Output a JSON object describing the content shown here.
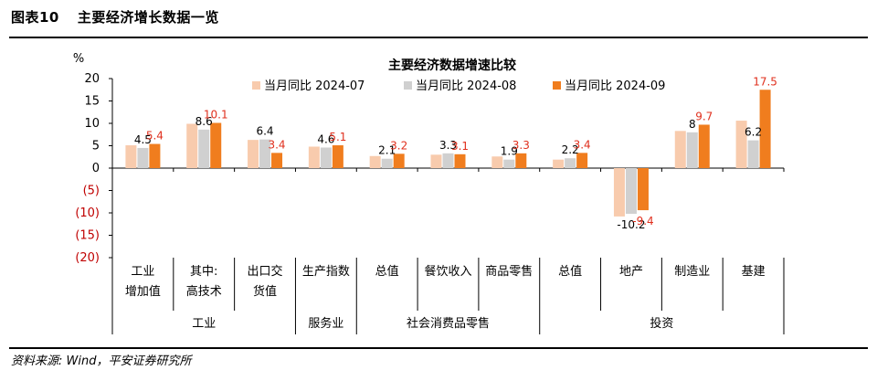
{
  "figure_label": "图表10",
  "figure_title": "主要经济增长数据一览",
  "source_note": "资料来源: Wind，平安证券研究所",
  "chart_data": {
    "type": "bar",
    "title": "主要经济数据增速比较",
    "ylabel": "%",
    "ylim": [
      -20,
      20
    ],
    "yticks": [
      "20",
      "15",
      "10",
      "5",
      "0",
      "(5)",
      "(10)",
      "(15)",
      "(20)"
    ],
    "legend_position": "top",
    "categories": [
      [
        "工业",
        "增加值"
      ],
      [
        "其中:",
        "高技术"
      ],
      [
        "出口交",
        "货值"
      ],
      [
        "生产指数"
      ],
      [
        "总值"
      ],
      [
        "餐饮收入"
      ],
      [
        "商品零售"
      ],
      [
        "总值"
      ],
      [
        "地产"
      ],
      [
        "制造业"
      ],
      [
        "基建"
      ]
    ],
    "groups": [
      {
        "label": "工业",
        "span": 3
      },
      {
        "label": "服务业",
        "span": 1
      },
      {
        "label": "社会消费品零售",
        "span": 3
      },
      {
        "label": "投资",
        "span": 4
      }
    ],
    "series": [
      {
        "name": "当月同比 2024-07",
        "color": "#f8cbad",
        "values": [
          5.1,
          9.9,
          6.3,
          4.8,
          2.7,
          3.0,
          2.6,
          1.9,
          -10.8,
          8.3,
          10.6
        ],
        "labeled": [
          false,
          false,
          false,
          false,
          false,
          false,
          false,
          false,
          false,
          false,
          false
        ]
      },
      {
        "name": "当月同比 2024-08",
        "color": "#d0d0d0",
        "values": [
          4.5,
          8.6,
          6.4,
          4.6,
          2.1,
          3.3,
          1.9,
          2.2,
          -10.2,
          8.0,
          6.2
        ],
        "labeled": [
          true,
          true,
          true,
          true,
          true,
          true,
          true,
          true,
          true,
          true,
          true
        ]
      },
      {
        "name": "当月同比 2024-09",
        "color": "#f07d1e",
        "values": [
          5.4,
          10.1,
          3.4,
          5.1,
          3.2,
          3.1,
          3.3,
          3.4,
          -9.4,
          9.7,
          17.5
        ],
        "labeled": [
          true,
          true,
          true,
          true,
          true,
          true,
          true,
          true,
          true,
          true,
          true
        ]
      }
    ],
    "label_colors": {
      "2024-08": "#000000",
      "2024-09": "#e0301e"
    }
  }
}
